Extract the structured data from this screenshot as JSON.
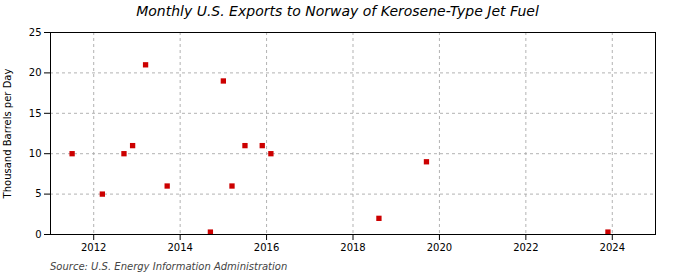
{
  "chart_data": {
    "type": "scatter",
    "title": "Monthly U.S. Exports to Norway of Kerosene-Type Jet Fuel",
    "ylabel": "Thousand Barrels per Day",
    "source": "Source: U.S. Energy Information Administration",
    "x": [
      2011.5,
      2012.2,
      2012.7,
      2012.9,
      2013.2,
      2013.7,
      2014.7,
      2015.0,
      2015.2,
      2015.5,
      2015.9,
      2016.1,
      2018.6,
      2019.7,
      2023.9
    ],
    "values": [
      10,
      5,
      10,
      11,
      21,
      6,
      0.3,
      19,
      6,
      11,
      11,
      10,
      2,
      9,
      0.3
    ],
    "color": "#cc0000",
    "marker": "square",
    "xlim": [
      2011.0,
      2025.0
    ],
    "xticks": [
      2012,
      2014,
      2016,
      2018,
      2020,
      2022,
      2024
    ],
    "ylim": [
      0,
      25
    ],
    "yticks": [
      0,
      5,
      10,
      15,
      20,
      25
    ],
    "grid": true
  }
}
